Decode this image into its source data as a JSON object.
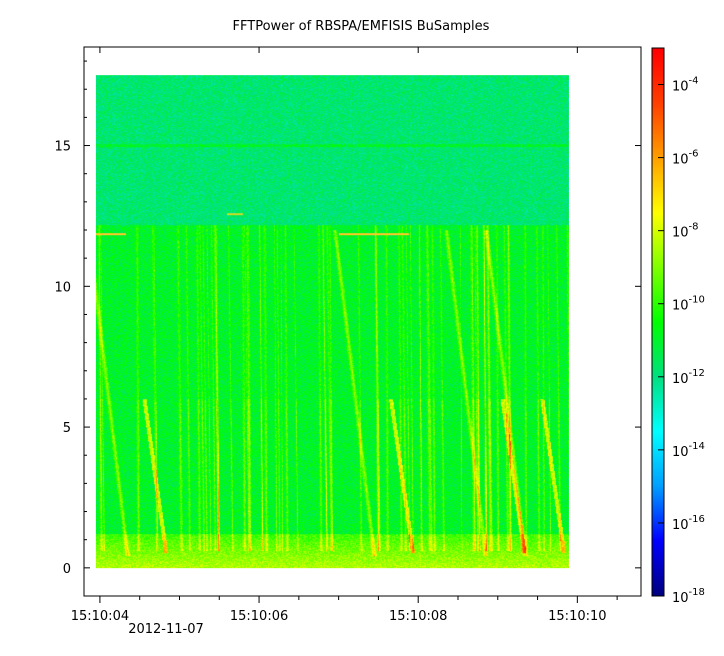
{
  "chart_data": {
    "type": "heatmap",
    "title": "FFTPower of RBSPA/EMFISIS  BuSamples",
    "xlabel": "",
    "ylabel": "",
    "x": {
      "start": "15:10:03.8",
      "end": "15:10:10.8",
      "unit": "seconds",
      "ticks": [
        "15:10:04",
        "15:10:06",
        "15:10:08",
        "15:10:10"
      ],
      "date_label": "2012-11-07",
      "data_range": [
        "15:10:03.95",
        "15:10:09.9"
      ]
    },
    "y": {
      "range": [
        -1,
        18.5
      ],
      "ticks": [
        0,
        5,
        10,
        15
      ],
      "data_range": [
        0,
        17.5
      ]
    },
    "z": {
      "scale": "log",
      "range": [
        "1e-18",
        "1e-3"
      ],
      "ticks": [
        {
          "base": "10",
          "exp": "-4"
        },
        {
          "base": "10",
          "exp": "-6"
        },
        {
          "base": "10",
          "exp": "-8"
        },
        {
          "base": "10",
          "exp": "-10"
        },
        {
          "base": "10",
          "exp": "-12"
        },
        {
          "base": "10",
          "exp": "-14"
        },
        {
          "base": "10",
          "exp": "-16"
        },
        {
          "base": "10",
          "exp": "-18"
        }
      ],
      "colorscale": [
        "#000080",
        "#0000ff",
        "#00a0ff",
        "#00ffff",
        "#00e080",
        "#00ff00",
        "#80ff00",
        "#ffff00",
        "#ffa000",
        "#ff4000",
        "#ff0000"
      ]
    },
    "features": {
      "background_level": "1e-11",
      "upper_band_y_min": 12.2,
      "upper_band_level": "1e-12",
      "horizontal_line_y": 15,
      "low_freq_enhanced_below_y": 1.2,
      "chirp_times": [
        "15:10:04.1",
        "15:10:07.2",
        "15:10:08.6",
        "15:10:09.1"
      ],
      "short_lines_y": [
        11.9,
        12.6
      ]
    },
    "grid": false,
    "legend": "colorbar-right"
  }
}
